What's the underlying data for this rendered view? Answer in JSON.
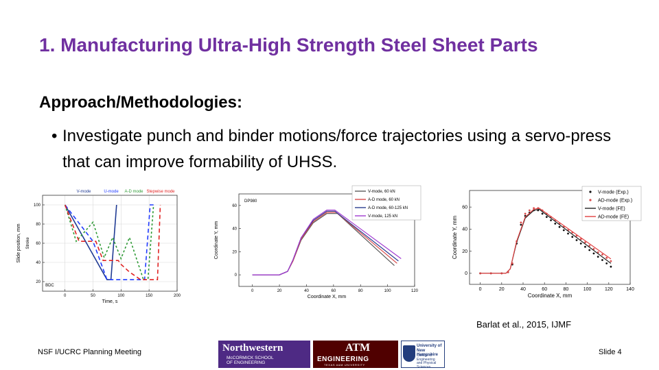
{
  "slide": {
    "title": "1. Manufacturing Ultra-High Strength Steel Sheet Parts",
    "heading": "Approach/Methodologies:",
    "bullet_marker": "•",
    "bullet": "Investigate punch and binder motions/force trajectories using a servo-press that can improve formability of UHSS.",
    "citation": "Barlat et al., 2015, IJMF",
    "footer_left": "NSF I/UCRC Planning Meeting",
    "footer_right": "Slide 4"
  },
  "logos": {
    "northwestern": {
      "name": "Northwestern",
      "line2": "McCORMICK SCHOOL",
      "line3": "OF ENGINEERING"
    },
    "tamu": {
      "mark": "ATM",
      "name": "ENGINEERING",
      "line2": "TEXAS A&M UNIVERSITY"
    },
    "unh": {
      "line1": "University of",
      "line2": "New Hampshire",
      "line3": "College of Engineering",
      "line4": "and Physical Sciences"
    }
  },
  "chart_data": [
    {
      "type": "line",
      "ylabel": "Slide position, mm",
      "ylabel2": "Stroke",
      "xlabel": "Time, s",
      "xlim": [
        -40,
        200
      ],
      "ylim": [
        10,
        110
      ],
      "xticks": [
        0,
        50,
        100,
        150,
        200
      ],
      "yticks": [
        20,
        40,
        60,
        80,
        100
      ],
      "annotation": "BDC",
      "grid": true,
      "series": [
        {
          "name": "V-mode",
          "color": "#1f3a93",
          "dash": "",
          "x": [
            0,
            75,
            82,
            92
          ],
          "y": [
            100,
            22,
            22,
            100
          ]
        },
        {
          "name": "U-mode",
          "color": "#1f3aff",
          "dash": "6,4",
          "x": [
            0,
            50,
            75,
            142,
            152,
            158
          ],
          "y": [
            100,
            62,
            22,
            22,
            100,
            100
          ]
        },
        {
          "name": "A-D mode",
          "color": "#2e9a35",
          "dash": "3,3",
          "x": [
            0,
            20,
            35,
            50,
            70,
            85,
            100,
            115,
            140,
            148,
            158
          ],
          "y": [
            100,
            62,
            72,
            82,
            45,
            66,
            44,
            66,
            22,
            22,
            100
          ]
        },
        {
          "name": "Stepwise mode",
          "color": "#e02222",
          "dash": "6,4",
          "x": [
            0,
            25,
            55,
            68,
            95,
            100,
            115,
            135,
            158,
            165,
            170
          ],
          "y": [
            100,
            62,
            62,
            42,
            42,
            38,
            30,
            22,
            22,
            22,
            100
          ]
        }
      ]
    },
    {
      "type": "line",
      "title": "DP980",
      "xlabel": "Coordinate X, mm",
      "ylabel": "Coordinate Y, mm",
      "xlim": [
        -10,
        120
      ],
      "ylim": [
        -10,
        70
      ],
      "xticks": [
        0,
        20,
        40,
        60,
        80,
        100,
        120
      ],
      "yticks": [
        0,
        20,
        40,
        60
      ],
      "legend": "top-right",
      "series": [
        {
          "name": "V-mode, 60 kN",
          "color": "#5a5a5a",
          "x": [
            0,
            20,
            26,
            30,
            36,
            45,
            55,
            63,
            105
          ],
          "y": [
            0,
            0,
            3,
            12,
            30,
            45,
            53,
            53,
            8
          ]
        },
        {
          "name": "A-D mode, 60 kN",
          "color": "#d94b4b",
          "x": [
            0,
            20,
            26,
            30,
            36,
            45,
            55,
            62,
            107
          ],
          "y": [
            0,
            0,
            3,
            12,
            31,
            46,
            54,
            54,
            10
          ]
        },
        {
          "name": "A-D mode, 60-125 kN",
          "color": "#2a3d8f",
          "x": [
            0,
            20,
            26,
            30,
            36,
            45,
            55,
            61,
            108
          ],
          "y": [
            0,
            0,
            3,
            13,
            32,
            47,
            55,
            55,
            12
          ]
        },
        {
          "name": "V-mode, 125 kN",
          "color": "#a03ad0",
          "x": [
            0,
            20,
            26,
            30,
            36,
            45,
            55,
            61,
            110
          ],
          "y": [
            0,
            0,
            3,
            13,
            32,
            48,
            56,
            56,
            14
          ]
        }
      ]
    },
    {
      "type": "line",
      "xlabel": "Coordinate X, mm",
      "ylabel": "Coordinate Y, mm",
      "xlim": [
        -10,
        140
      ],
      "ylim": [
        -10,
        75
      ],
      "xticks": [
        0,
        20,
        40,
        60,
        80,
        100,
        120,
        140
      ],
      "yticks": [
        0,
        20,
        40,
        60
      ],
      "legend": "top-right",
      "series": [
        {
          "name": "V-mode (Exp.)",
          "color": "#111111",
          "style": "markers",
          "x": [
            0,
            10,
            20,
            26,
            30,
            34,
            38,
            42,
            46,
            50,
            54,
            58,
            62,
            66,
            70,
            74,
            78,
            82,
            86,
            90,
            94,
            98,
            102,
            106,
            110,
            114,
            118,
            122
          ],
          "y": [
            0,
            0,
            0,
            1,
            8,
            27,
            44,
            52,
            55,
            57,
            57,
            54,
            51,
            48,
            45,
            42,
            39,
            36,
            33,
            30,
            27,
            24,
            21,
            18,
            15,
            12,
            9,
            6
          ]
        },
        {
          "name": "AD-mode (Exp.)",
          "color": "#d94b4b",
          "style": "markers",
          "x": [
            0,
            10,
            20,
            26,
            30,
            34,
            38,
            42,
            46,
            50,
            54,
            58,
            62,
            66,
            70,
            74,
            78,
            82,
            86,
            90,
            94,
            98,
            102,
            106,
            110,
            114,
            118,
            122
          ],
          "y": [
            0,
            0,
            0,
            1,
            9,
            29,
            46,
            54,
            57,
            59,
            59,
            57,
            54,
            51,
            48,
            45,
            42,
            39,
            37,
            34,
            31,
            28,
            25,
            22,
            19,
            17,
            14,
            11
          ]
        },
        {
          "name": "V-mode (FE)",
          "color": "#222222",
          "style": "line",
          "x": [
            0,
            24,
            28,
            34,
            42,
            50,
            55,
            122
          ],
          "y": [
            0,
            0,
            4,
            28,
            50,
            57,
            58,
            9
          ]
        },
        {
          "name": "AD-mode (FE)",
          "color": "#e04040",
          "style": "line",
          "x": [
            0,
            24,
            28,
            34,
            42,
            50,
            55,
            122
          ],
          "y": [
            0,
            0,
            4,
            29,
            51,
            58,
            59,
            13
          ]
        }
      ]
    }
  ]
}
